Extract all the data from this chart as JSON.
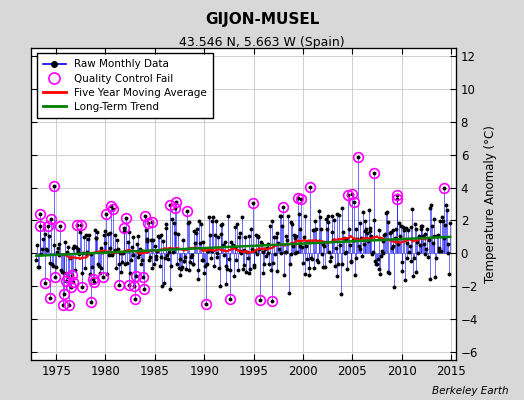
{
  "title": "GIJON-MUSEL",
  "subtitle": "43.546 N, 5.663 W (Spain)",
  "ylabel": "Temperature Anomaly (°C)",
  "credit": "Berkeley Earth",
  "xlim": [
    1972.5,
    2015.5
  ],
  "ylim": [
    -6.5,
    12.5
  ],
  "yticks": [
    -6,
    -4,
    -2,
    0,
    2,
    4,
    6,
    8,
    10,
    12
  ],
  "xticks": [
    1975,
    1980,
    1985,
    1990,
    1995,
    2000,
    2005,
    2010,
    2015
  ],
  "plot_bg": "#ffffff",
  "fig_bg": "#d8d8d8",
  "grid_color": "#c8c8c8",
  "seed": 12345
}
